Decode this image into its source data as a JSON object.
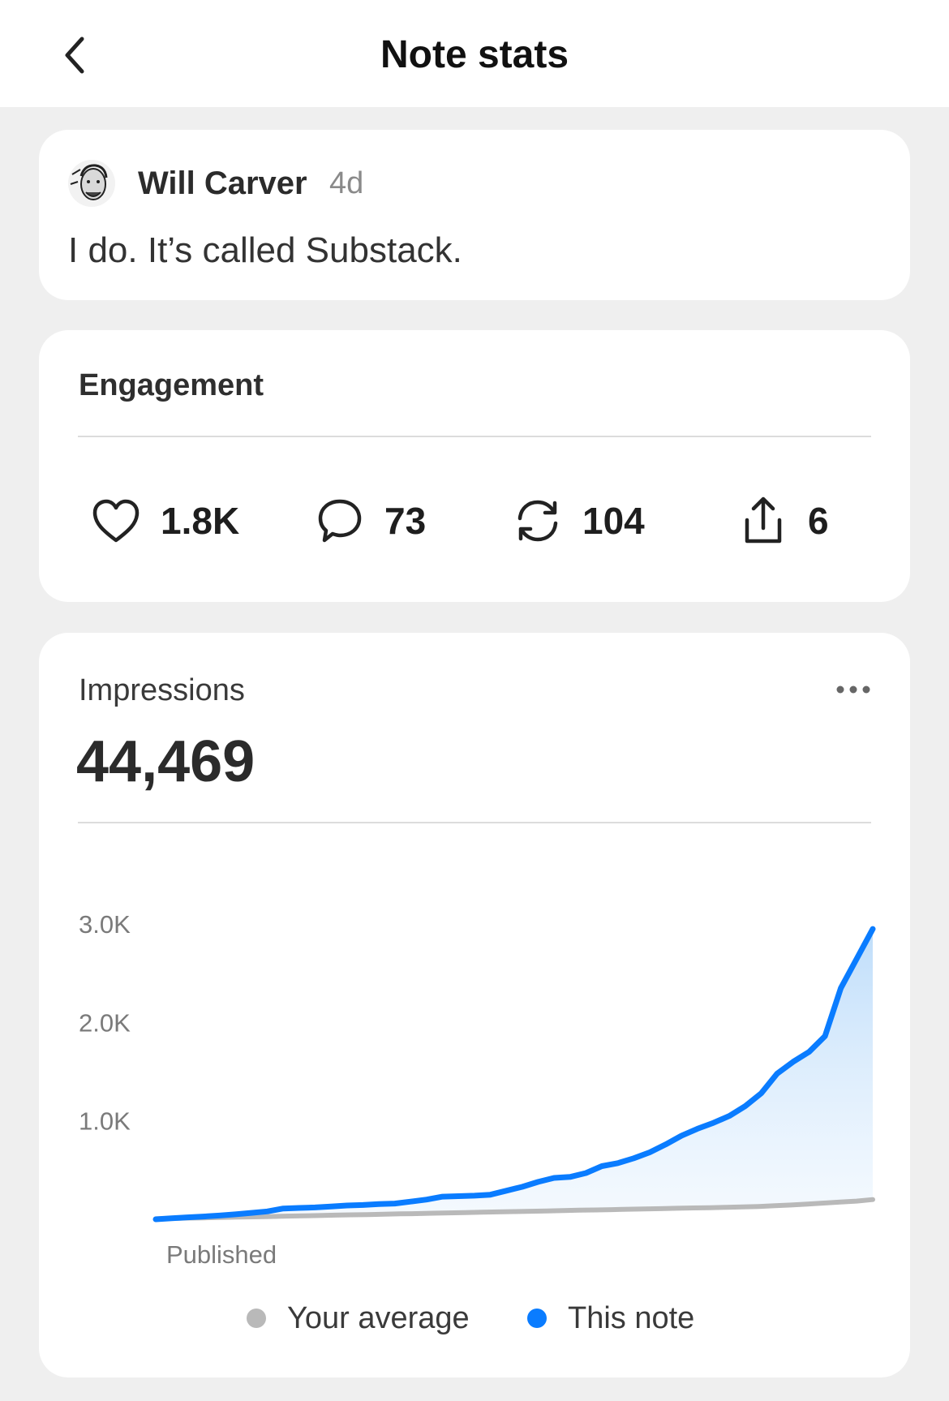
{
  "header": {
    "title": "Note stats",
    "back_icon": "chevron-left-icon"
  },
  "note": {
    "author": "Will Carver",
    "age": "4d",
    "text": "I do. It’s called Substack."
  },
  "engagement": {
    "title": "Engagement",
    "stats": [
      {
        "icon": "heart-icon",
        "value": "1.8K"
      },
      {
        "icon": "comment-icon",
        "value": "73"
      },
      {
        "icon": "restack-icon",
        "value": "104"
      },
      {
        "icon": "share-icon",
        "value": "6"
      }
    ]
  },
  "impressions": {
    "title": "Impressions",
    "total": "44,469",
    "more_icon": "more-horizontal-icon"
  },
  "colors": {
    "this_note": "#0a7cff",
    "average": "#b9b9b9",
    "fill": "#cfe6fb"
  },
  "chart_data": {
    "type": "line",
    "y_ticks": [
      "3.0K",
      "2.0K",
      "1.0K"
    ],
    "y_tick_values": [
      3000,
      2000,
      1000
    ],
    "ylim": [
      0,
      3000
    ],
    "x_start_label": "Published",
    "grid": false,
    "legend_position": "bottom",
    "series": [
      {
        "name": "Your average",
        "values": [
          5,
          8,
          12,
          15,
          18,
          22,
          25,
          28,
          32,
          35,
          38,
          42,
          45,
          48,
          52,
          55,
          58,
          62,
          65,
          68,
          72,
          75,
          78,
          82,
          85,
          88,
          92,
          95,
          98,
          102,
          105,
          108,
          112,
          115,
          118,
          122,
          125,
          130,
          138,
          145,
          155,
          165,
          175,
          185,
          200
        ]
      },
      {
        "name": "This note",
        "values": [
          0,
          10,
          20,
          28,
          38,
          50,
          65,
          80,
          110,
          115,
          120,
          130,
          140,
          145,
          155,
          160,
          180,
          200,
          230,
          235,
          240,
          250,
          290,
          330,
          380,
          420,
          430,
          470,
          540,
          570,
          620,
          680,
          760,
          850,
          920,
          980,
          1050,
          1150,
          1280,
          1480,
          1600,
          1700,
          1860,
          2350,
          2650,
          2950
        ]
      }
    ]
  }
}
